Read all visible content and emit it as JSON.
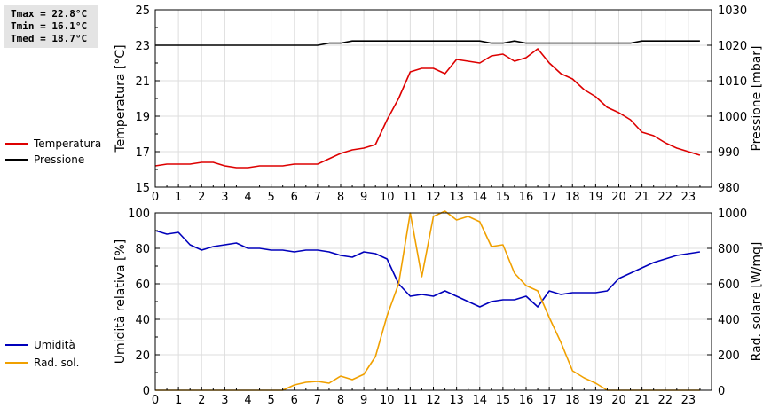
{
  "stats": {
    "tmax": "Tmax = 22.8°C",
    "tmin": "Tmin = 16.1°C",
    "tmed": "Tmed = 18.7°C"
  },
  "colors": {
    "temperature": "#dd0000",
    "pressure": "#000000",
    "humidity": "#0000bb",
    "radiation": "#f0a000"
  },
  "chart_data": [
    {
      "type": "line",
      "title": "",
      "xlabel": "",
      "ylabel": "Temperatura [°C]",
      "y2label": "Pressione [mbar]",
      "xlim": [
        0,
        24
      ],
      "ylim": [
        15,
        25
      ],
      "y2lim": [
        980,
        1030
      ],
      "x_ticks": [
        "0",
        "1",
        "2",
        "3",
        "4",
        "5",
        "6",
        "7",
        "8",
        "9",
        "10",
        "11",
        "12",
        "13",
        "14",
        "15",
        "16",
        "17",
        "18",
        "19",
        "20",
        "21",
        "22",
        "23"
      ],
      "y_ticks": [
        "15",
        "17",
        "19",
        "21",
        "23",
        "25"
      ],
      "y2_ticks": [
        "980",
        "990",
        "1000",
        "1010",
        "1020",
        "1030"
      ],
      "grid": true,
      "legend": [
        "Temperatura",
        "Pressione"
      ],
      "series": [
        {
          "name": "Temperatura",
          "axis": "left",
          "x": [
            0,
            0.5,
            1,
            1.5,
            2,
            2.5,
            3,
            3.5,
            4,
            4.5,
            5,
            5.5,
            6,
            6.5,
            7,
            7.5,
            8,
            8.5,
            9,
            9.5,
            10,
            10.5,
            11,
            11.5,
            12,
            12.5,
            13,
            13.5,
            14,
            14.5,
            15,
            15.5,
            16,
            16.5,
            17,
            17.5,
            18,
            18.5,
            19,
            19.5,
            20,
            20.5,
            21,
            21.5,
            22,
            22.5,
            23,
            23.5
          ],
          "values": [
            16.2,
            16.3,
            16.3,
            16.3,
            16.4,
            16.4,
            16.2,
            16.1,
            16.1,
            16.2,
            16.2,
            16.2,
            16.3,
            16.3,
            16.3,
            16.6,
            16.9,
            17.1,
            17.2,
            17.4,
            18.8,
            20.0,
            21.5,
            21.7,
            21.7,
            21.4,
            22.2,
            22.1,
            22.0,
            22.4,
            22.5,
            22.1,
            22.3,
            22.8,
            22.0,
            21.4,
            21.1,
            20.5,
            20.1,
            19.5,
            19.2,
            18.8,
            18.1,
            17.9,
            17.5,
            17.2,
            17.0,
            16.8
          ]
        },
        {
          "name": "Pressione",
          "axis": "right",
          "x": [
            0,
            1,
            2,
            3,
            4,
            5,
            6,
            7,
            7.5,
            8,
            8.5,
            9,
            10,
            11,
            12,
            13,
            14,
            14.5,
            15,
            15.5,
            16,
            17,
            18,
            19,
            20,
            20.5,
            21,
            22,
            23,
            23.5
          ],
          "values": [
            1020,
            1020,
            1020,
            1020,
            1020,
            1020,
            1020,
            1020,
            1020.6,
            1020.6,
            1021.2,
            1021.2,
            1021.2,
            1021.2,
            1021.2,
            1021.2,
            1021.2,
            1020.6,
            1020.6,
            1021.2,
            1020.6,
            1020.6,
            1020.6,
            1020.6,
            1020.6,
            1020.6,
            1021.2,
            1021.2,
            1021.2,
            1021.2
          ]
        }
      ]
    },
    {
      "type": "line",
      "title": "",
      "xlabel": "",
      "ylabel": "Umidità relativa [%]",
      "y2label": "Rad. solare [W/mq]",
      "xlim": [
        0,
        24
      ],
      "ylim": [
        0,
        100
      ],
      "y2lim": [
        0,
        1000
      ],
      "x_ticks": [
        "0",
        "1",
        "2",
        "3",
        "4",
        "5",
        "6",
        "7",
        "8",
        "9",
        "10",
        "11",
        "12",
        "13",
        "14",
        "15",
        "16",
        "17",
        "18",
        "19",
        "20",
        "21",
        "22",
        "23"
      ],
      "y_ticks": [
        "0",
        "20",
        "40",
        "60",
        "80",
        "100"
      ],
      "y2_ticks": [
        "0",
        "200",
        "400",
        "600",
        "800",
        "1000"
      ],
      "grid": true,
      "legend": [
        "Umidità",
        "Rad. sol."
      ],
      "series": [
        {
          "name": "Umidità",
          "axis": "left",
          "x": [
            0,
            0.5,
            1,
            1.5,
            2,
            2.5,
            3,
            3.5,
            4,
            4.5,
            5,
            5.5,
            6,
            6.5,
            7,
            7.5,
            8,
            8.5,
            9,
            9.5,
            10,
            10.5,
            11,
            11.5,
            12,
            12.5,
            13,
            13.5,
            14,
            14.5,
            15,
            15.5,
            16,
            16.5,
            17,
            17.5,
            18,
            18.5,
            19,
            19.5,
            20,
            20.5,
            21,
            21.5,
            22,
            22.5,
            23,
            23.5
          ],
          "values": [
            90,
            88,
            89,
            82,
            79,
            81,
            82,
            83,
            80,
            80,
            79,
            79,
            78,
            79,
            79,
            78,
            76,
            75,
            78,
            77,
            74,
            60,
            53,
            54,
            53,
            56,
            53,
            50,
            47,
            50,
            51,
            51,
            53,
            47,
            56,
            54,
            55,
            55,
            55,
            56,
            63,
            66,
            69,
            72,
            74,
            76,
            77,
            78
          ]
        },
        {
          "name": "Rad. sol.",
          "axis": "right",
          "x": [
            0,
            1,
            2,
            3,
            4,
            5,
            5.5,
            6,
            6.5,
            7,
            7.5,
            8,
            8.5,
            9,
            9.5,
            10,
            10.5,
            11,
            11.5,
            12,
            12.5,
            13,
            13.5,
            14,
            14.5,
            15,
            15.5,
            16,
            16.5,
            17,
            17.5,
            18,
            18.5,
            19,
            19.5,
            20,
            21,
            22,
            23,
            23.5
          ],
          "values": [
            0,
            0,
            0,
            0,
            0,
            0,
            0,
            30,
            45,
            50,
            40,
            80,
            60,
            90,
            190,
            420,
            600,
            1000,
            640,
            980,
            1010,
            960,
            980,
            950,
            810,
            820,
            660,
            590,
            560,
            410,
            270,
            110,
            70,
            40,
            0,
            0,
            0,
            0,
            0,
            0
          ]
        }
      ]
    }
  ]
}
